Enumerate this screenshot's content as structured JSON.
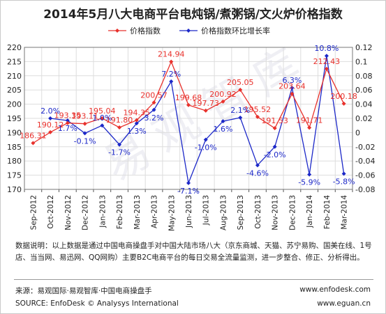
{
  "title": "2014年5月八大电商平台电炖锅/煮粥锅/文火炉价格指数",
  "watermark": "易观智库",
  "colors": {
    "price": "#e8312c",
    "ratio": "#1c28c8",
    "grid": "#dddddd"
  },
  "chart_data": {
    "type": "line",
    "categories": [
      "Sep-2012",
      "Oct-2012",
      "Nov-2012",
      "Dec-2012",
      "Jan-2013",
      "Feb-2013",
      "Mar-2013",
      "Apr-2013",
      "May-2013",
      "Jun-2013",
      "Jul-2013",
      "Aug-2013",
      "Sep-2013",
      "Oct-2013",
      "Nov-2013",
      "Dec-2013",
      "Jan-2014",
      "Feb-2014",
      "Mar-2014"
    ],
    "series": [
      {
        "name": "价格指数",
        "axis": "left",
        "values": [
          186.31,
          190.12,
          193.35,
          193.11,
          195.04,
          191.8,
          194.35,
          200.57,
          214.94,
          199.68,
          197.73,
          200.92,
          205.05,
          195.52,
          191.53,
          203.64,
          191.71,
          212.43,
          200.18
        ],
        "labels": [
          "186.31",
          "190.12",
          "193.35",
          "193.11",
          "195.04",
          "191.80",
          "194.35",
          "200.57",
          "214.94",
          "199.68",
          "197.73",
          "200.92",
          "205.05",
          "195.52",
          "191.53",
          "203.64",
          "191.71",
          "212.43",
          "200.18"
        ]
      },
      {
        "name": "价格指数环比增长率",
        "axis": "right",
        "values": [
          null,
          0.02,
          0.017,
          -0.001,
          0.01,
          -0.017,
          0.013,
          0.032,
          0.072,
          -0.071,
          -0.01,
          0.016,
          0.021,
          -0.046,
          -0.02,
          0.063,
          -0.059,
          0.108,
          -0.058
        ],
        "labels": [
          "",
          "2.0%",
          "1.7%",
          "-0.1%",
          "1.0%",
          "-1.7%",
          "1.3%",
          "3.2%",
          "7.2%",
          "-7.1%",
          "-1.0%",
          "1.6%",
          "2.1%",
          "-4.6%",
          "-2.0%",
          "6.3%",
          "-5.9%",
          "10.8%",
          "-5.8%"
        ]
      }
    ],
    "ylim": [
      170,
      220
    ],
    "yticks": [
      "170",
      "175",
      "180",
      "185",
      "190",
      "195",
      "200",
      "205",
      "210",
      "215",
      "220"
    ],
    "y2lim": [
      -0.08,
      0.12
    ],
    "y2ticks": [
      "-0.08",
      "-0.06",
      "-0.04",
      "-0.02",
      "0",
      "0.02",
      "0.04",
      "0.06",
      "0.08",
      "0.1",
      "0.12"
    ],
    "grid": true,
    "legend_position": "top"
  },
  "note": "数据说明：以上数据是通过中国电商操盘手对中国大陆市场八大（京东商城、天猫、苏宁易购、国美在线、1号店、当当网、易迅网、QQ网购）主要B2C电商平台的每日交易全流量监测，进一步整合、修正、分析得出。",
  "source_cn": "来源：易观国际·易观智库·中国电商操盘手",
  "source_en": "SOURCE: EnfoDesk © Analysys International",
  "url1": "www.enfodesk.com",
  "url2": "www.eguan.cn"
}
